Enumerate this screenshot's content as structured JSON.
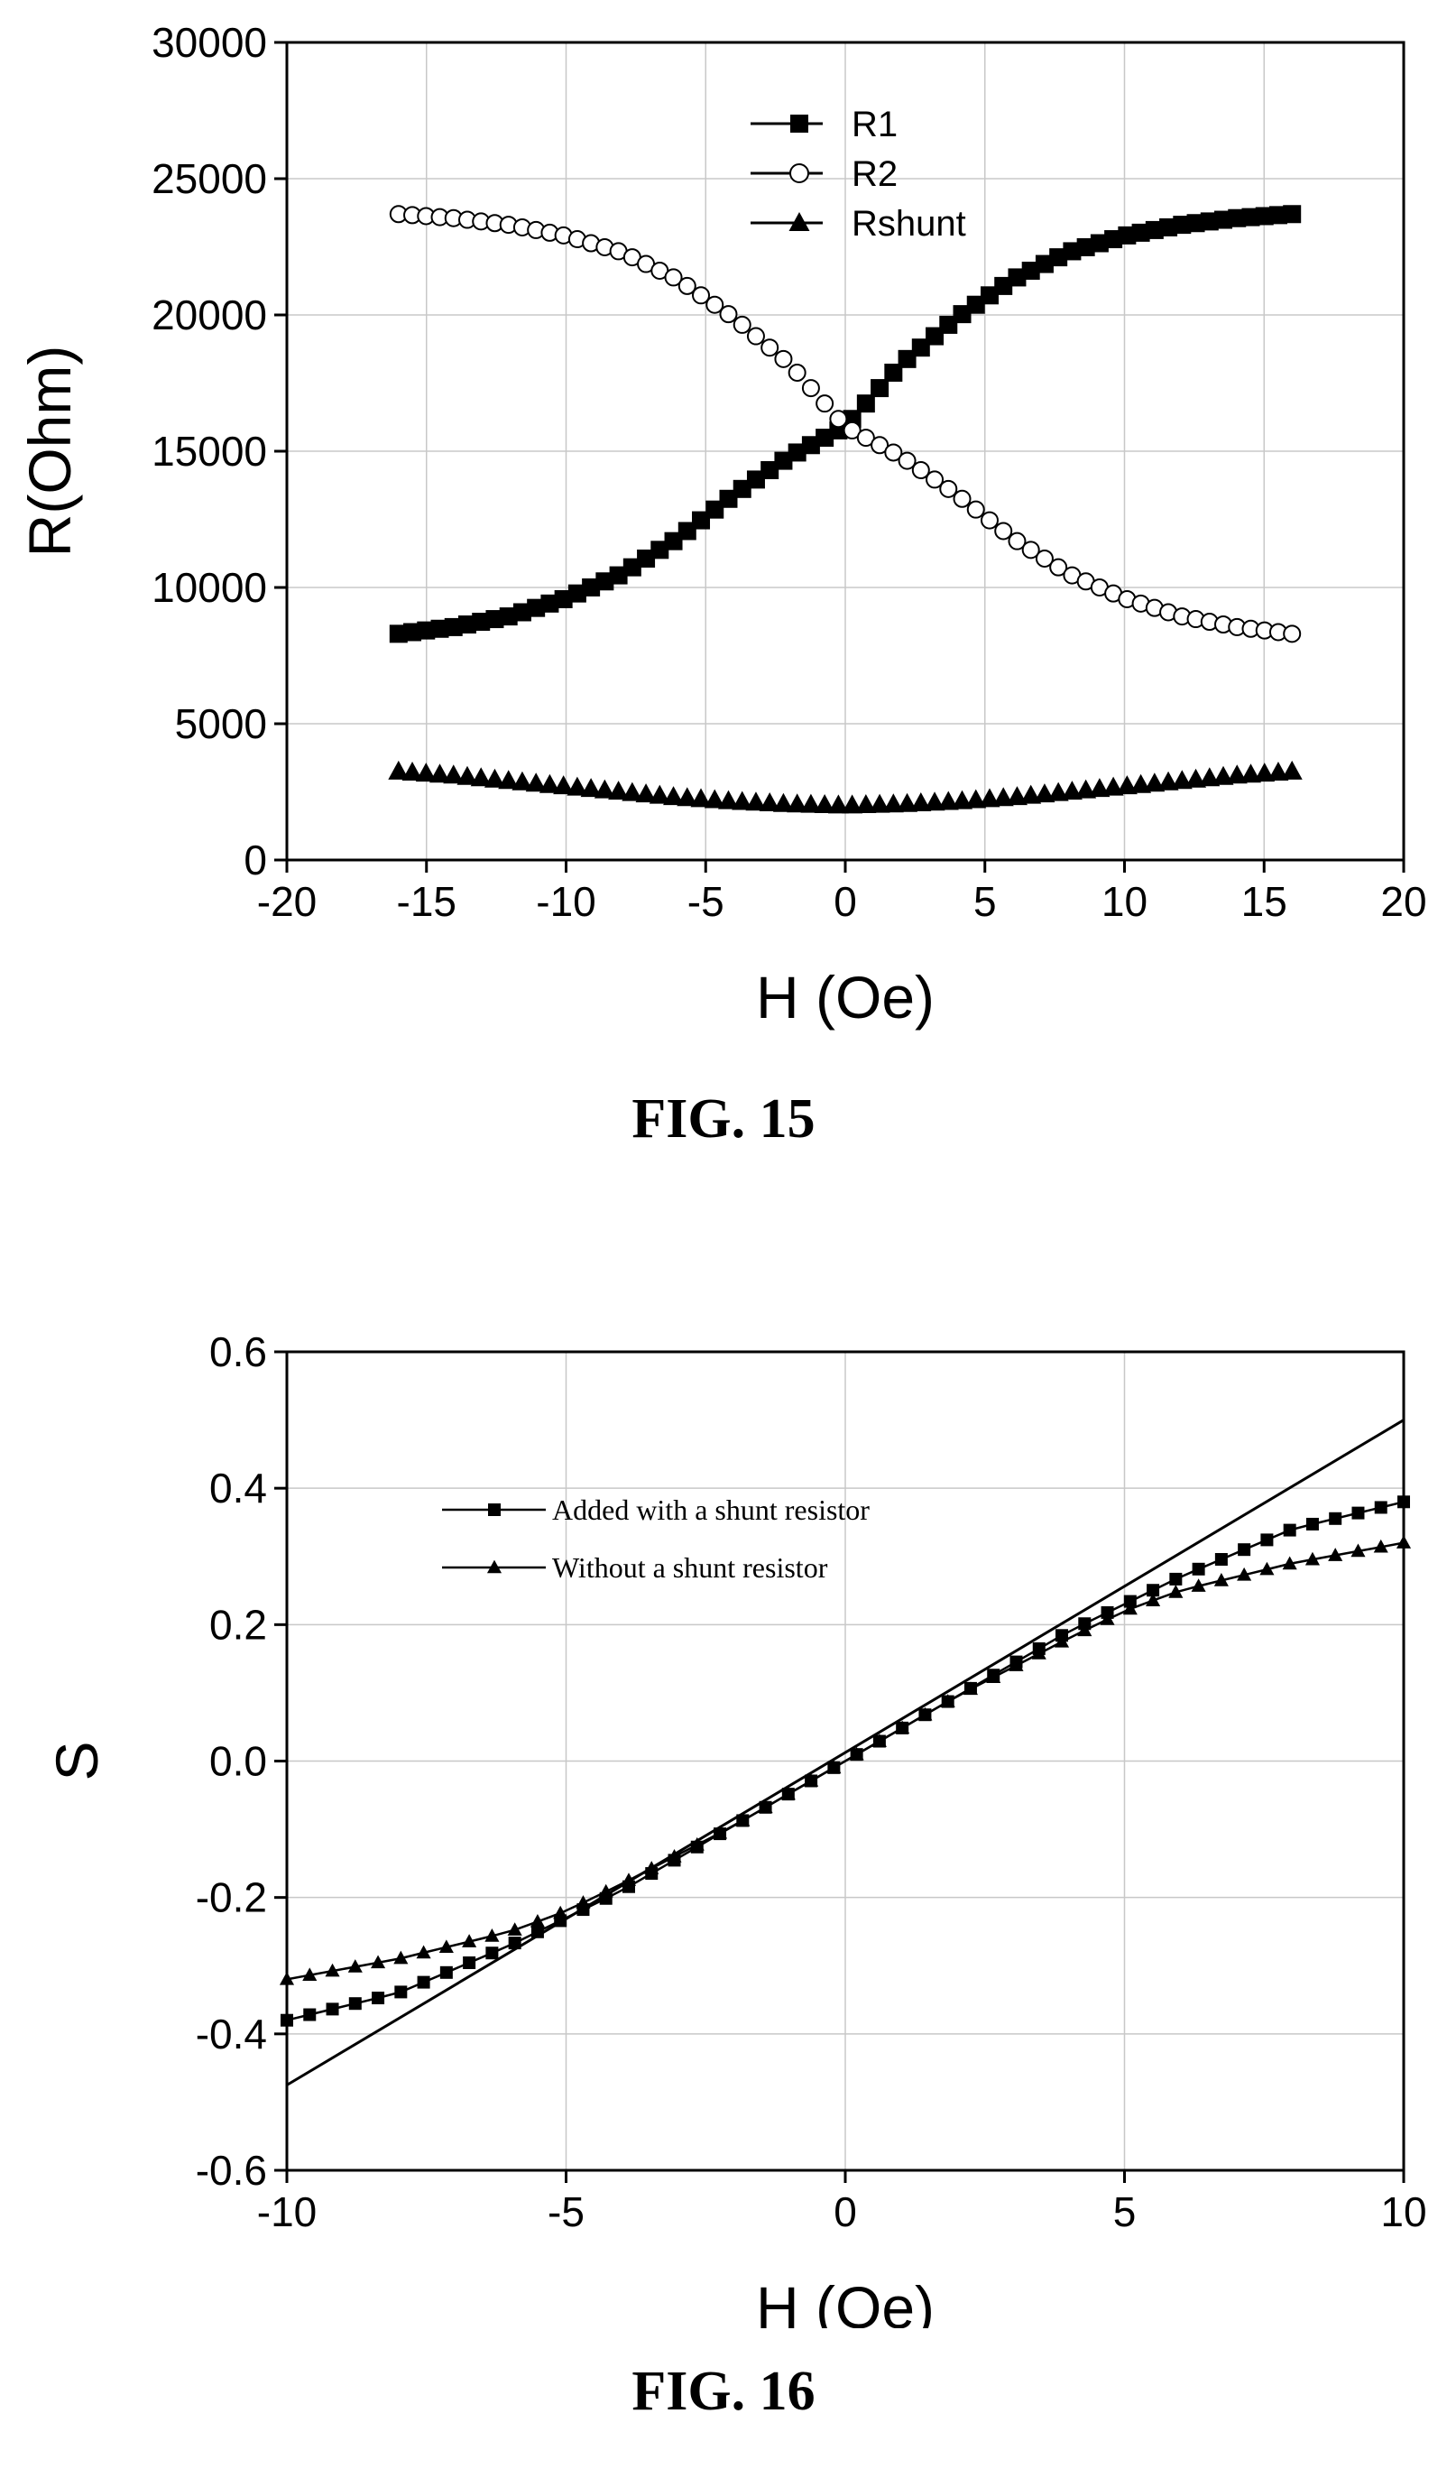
{
  "chart_data": [
    {
      "type": "scatter",
      "caption": "FIG. 15",
      "xlabel": "H (Oe)",
      "ylabel": "R(Ohm)",
      "xlim": [
        -20,
        20
      ],
      "ylim": [
        0,
        30000
      ],
      "xticks": [
        -20,
        -15,
        -10,
        -5,
        0,
        5,
        10,
        15,
        20
      ],
      "yticks": [
        0,
        5000,
        10000,
        15000,
        20000,
        25000,
        30000
      ],
      "grid": true,
      "legend_position": "top-center",
      "series": [
        {
          "name": "R1",
          "marker": "filled-square",
          "x": [
            -16,
            -14,
            -12,
            -10,
            -8,
            -6,
            -4,
            -2,
            0,
            2,
            4,
            6,
            8,
            10,
            12,
            14,
            16
          ],
          "y": [
            8300,
            8550,
            8950,
            9600,
            10500,
            11800,
            13400,
            14800,
            15900,
            18200,
            19900,
            21300,
            22300,
            22900,
            23300,
            23550,
            23700
          ]
        },
        {
          "name": "R2",
          "marker": "open-circle",
          "x": [
            -16,
            -14,
            -12,
            -10,
            -8,
            -6,
            -4,
            -2,
            0,
            2,
            4,
            6,
            8,
            10,
            12,
            14,
            16
          ],
          "y": [
            23700,
            23550,
            23300,
            22900,
            22300,
            21300,
            19900,
            18200,
            15900,
            14800,
            13400,
            11800,
            10500,
            9600,
            8950,
            8550,
            8300
          ]
        },
        {
          "name": "Rshunt",
          "marker": "filled-triangle",
          "x": [
            -16,
            -14,
            -12,
            -10,
            -8,
            -6,
            -4,
            -2,
            0,
            2,
            4,
            6,
            8,
            10,
            12,
            14,
            16
          ],
          "y": [
            3250,
            3100,
            2900,
            2700,
            2500,
            2300,
            2150,
            2050,
            2000,
            2050,
            2150,
            2300,
            2500,
            2700,
            2900,
            3100,
            3250
          ]
        }
      ]
    },
    {
      "type": "line",
      "caption": "FIG. 16",
      "xlabel": "H (Oe)",
      "ylabel": "S",
      "xlim": [
        -10,
        10
      ],
      "ylim": [
        -0.6,
        0.6
      ],
      "xticks": [
        -10,
        -5,
        0,
        5,
        10
      ],
      "yticks": [
        -0.6,
        -0.4,
        -0.2,
        0.0,
        0.2,
        0.4,
        0.6
      ],
      "ytick_labels": [
        "-0.6",
        "-0.4",
        "-0.2",
        "0.0",
        "0.2",
        "0.4",
        "0.6"
      ],
      "grid": true,
      "legend_position": "top-left",
      "series": [
        {
          "name": "Added with a shunt resistor",
          "marker": "filled-square",
          "x": [
            -10,
            -8,
            -6,
            -5,
            -4,
            -2,
            0,
            2,
            4,
            5,
            6,
            8,
            10
          ],
          "y": [
            -0.38,
            -0.34,
            -0.27,
            -0.23,
            -0.19,
            -0.095,
            0.0,
            0.095,
            0.19,
            0.23,
            0.27,
            0.34,
            0.38
          ]
        },
        {
          "name": "Without a shunt resistor",
          "marker": "filled-triangle",
          "x": [
            -10,
            -8,
            -6,
            -5,
            -4,
            -2,
            0,
            2,
            4,
            5,
            6,
            8,
            10
          ],
          "y": [
            -0.32,
            -0.29,
            -0.25,
            -0.22,
            -0.18,
            -0.095,
            0.0,
            0.095,
            0.18,
            0.22,
            0.25,
            0.29,
            0.32
          ]
        },
        {
          "name": "",
          "marker": "none",
          "x": [
            -10,
            10
          ],
          "y": [
            -0.475,
            0.5
          ]
        }
      ]
    }
  ]
}
